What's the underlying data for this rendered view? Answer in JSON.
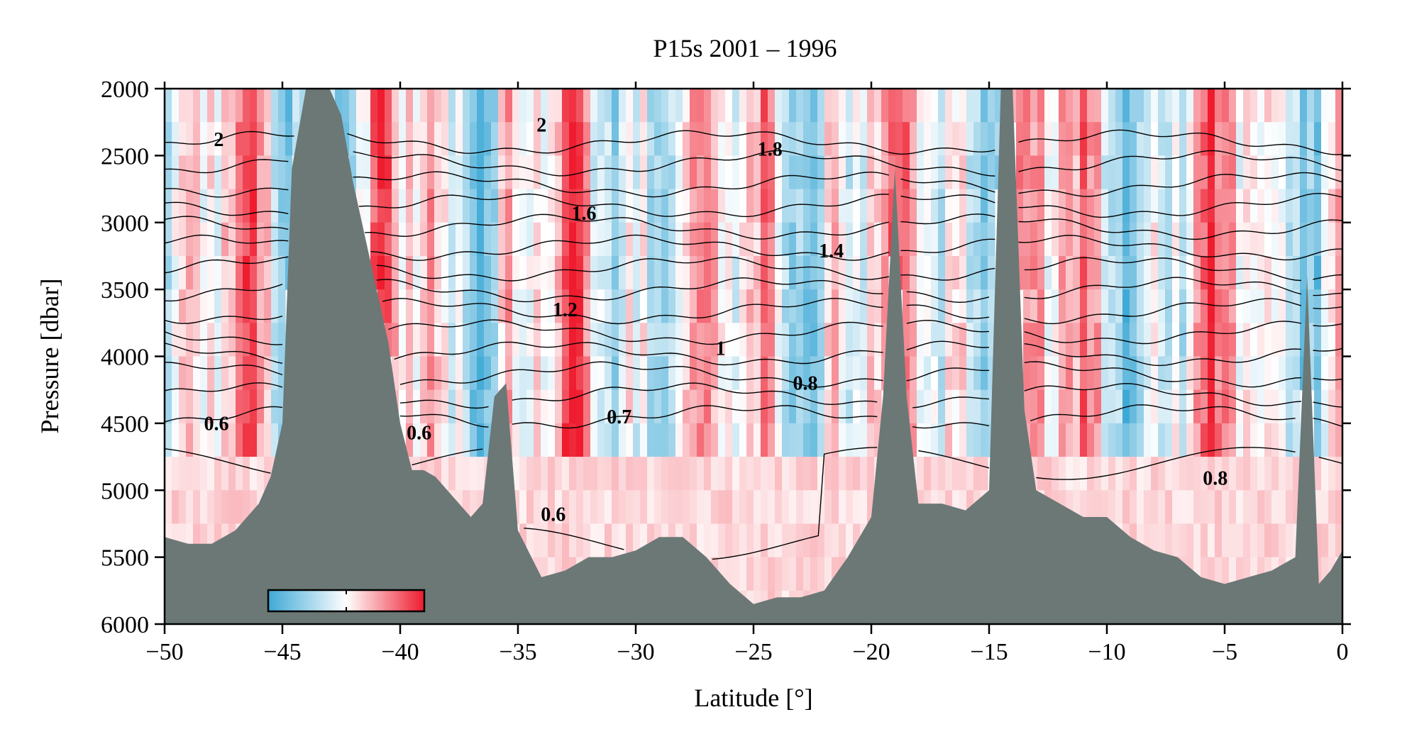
{
  "chart_data": {
    "type": "heatmap",
    "title": "P15s 2001 – 1996",
    "xlabel": "Latitude [°]",
    "ylabel": "Pressure [dbar]",
    "xlim": [
      -50,
      0
    ],
    "ylim": [
      6000,
      2000
    ],
    "y_inverted": true,
    "x_ticks": [
      -50,
      -45,
      -40,
      -35,
      -30,
      -25,
      -20,
      -15,
      -10,
      -5,
      0
    ],
    "x_tick_labels": [
      "−50",
      "−45",
      "−40",
      "−35",
      "−30",
      "−25",
      "−20",
      "−15",
      "−10",
      "−5",
      "0"
    ],
    "y_ticks": [
      2000,
      2500,
      3000,
      3500,
      4000,
      4500,
      5000,
      5500,
      6000
    ],
    "y_tick_labels": [
      "2000",
      "2500",
      "3000",
      "3500",
      "4000",
      "4500",
      "5000",
      "5500",
      "6000"
    ],
    "colormap": {
      "negative": "#3fa9d6",
      "neutral": "#ffffff",
      "positive": "#ee1c2e",
      "bathymetry": "#6b7876"
    },
    "contour_levels": [
      0.6,
      0.7,
      0.8,
      0.9,
      1.0,
      1.1,
      1.2,
      1.3,
      1.4,
      1.5,
      1.6,
      1.7,
      1.8,
      1.9,
      2.0
    ],
    "contour_labels": [
      {
        "text": "2",
        "x": -47.7,
        "p": 2430
      },
      {
        "text": "2",
        "x": -34.0,
        "p": 2320
      },
      {
        "text": "1.8",
        "x": -24.3,
        "p": 2500
      },
      {
        "text": "1.6",
        "x": -32.2,
        "p": 2980
      },
      {
        "text": "1.4",
        "x": -21.7,
        "p": 3260
      },
      {
        "text": "1.2",
        "x": -33.0,
        "p": 3700
      },
      {
        "text": "1",
        "x": -26.4,
        "p": 3990
      },
      {
        "text": "0.8",
        "x": -22.8,
        "p": 4250
      },
      {
        "text": "0.7",
        "x": -30.7,
        "p": 4500
      },
      {
        "text": "0.6",
        "x": -47.8,
        "p": 4550
      },
      {
        "text": "0.6",
        "x": -39.2,
        "p": 4620
      },
      {
        "text": "0.6",
        "x": -33.5,
        "p": 5230
      },
      {
        "text": "0.8",
        "x": -5.4,
        "p": 4960
      }
    ],
    "bathymetry": {
      "lat": [
        -50,
        -49,
        -48,
        -47,
        -46,
        -45.5,
        -45,
        -44.6,
        -44,
        -43.5,
        -43,
        -42.5,
        -42,
        -41.5,
        -41,
        -40.5,
        -40,
        -39.5,
        -39,
        -38.5,
        -38,
        -37.5,
        -37,
        -36.5,
        -36,
        -35.5,
        -35,
        -34,
        -33,
        -32,
        -31,
        -30,
        -29,
        -28,
        -27,
        -26,
        -25,
        -24,
        -23,
        -22,
        -21,
        -20,
        -19.5,
        -19,
        -18.5,
        -18,
        -17,
        -16,
        -15,
        -14.5,
        -14,
        -13.5,
        -13,
        -12,
        -11,
        -10,
        -9,
        -8,
        -7,
        -6,
        -5,
        -4,
        -3,
        -2,
        -1.5,
        -1,
        -0.5,
        0
      ],
      "depth": [
        5350,
        5400,
        5400,
        5300,
        5100,
        4900,
        4500,
        2600,
        2000,
        2000,
        2000,
        2200,
        2700,
        3100,
        3500,
        3900,
        4500,
        4850,
        4850,
        4900,
        5000,
        5100,
        5200,
        5100,
        4300,
        4200,
        5300,
        5650,
        5600,
        5500,
        5500,
        5450,
        5350,
        5350,
        5500,
        5700,
        5850,
        5800,
        5800,
        5750,
        5500,
        5200,
        4300,
        2600,
        4300,
        5100,
        5100,
        5150,
        5000,
        2000,
        2000,
        4400,
        5000,
        5100,
        5200,
        5200,
        5350,
        5450,
        5500,
        5650,
        5700,
        5650,
        5600,
        5500,
        3400,
        5700,
        5600,
        5450
      ]
    }
  }
}
